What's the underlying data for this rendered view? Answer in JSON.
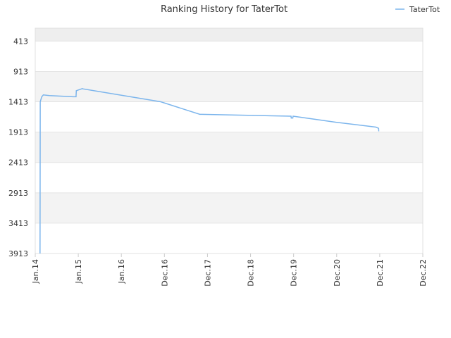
{
  "chart_data": {
    "type": "line",
    "title": "Ranking History for TaterTot",
    "xlabel": "",
    "ylabel": "",
    "y_reversed": true,
    "ylim": [
      3913,
      200
    ],
    "y_ticks": [
      413,
      913,
      1413,
      1913,
      2413,
      2913,
      3413,
      3913
    ],
    "x_range": [
      "2014-01",
      "2022-12"
    ],
    "x_ticks": [
      "Jan.14",
      "Jan.15",
      "Jan.16",
      "Dec.16",
      "Dec.17",
      "Dec.18",
      "Dec.19",
      "Dec.20",
      "Dec.21",
      "Dec.22"
    ],
    "grid": true,
    "legend_position": "top-right",
    "series": [
      {
        "name": "TaterTot",
        "color": "#7cb5ec",
        "points": [
          [
            "2014-02-10",
            3913
          ],
          [
            "2014-02-12",
            1413
          ],
          [
            "2014-02-25",
            1330
          ],
          [
            "2014-03-10",
            1300
          ],
          [
            "2014-05-01",
            1310
          ],
          [
            "2014-11-15",
            1330
          ],
          [
            "2014-12-10",
            1330
          ],
          [
            "2014-12-12",
            1230
          ],
          [
            "2015-02-01",
            1195
          ],
          [
            "2015-02-05",
            1200
          ],
          [
            "2016-11-20",
            1413
          ],
          [
            "2017-10-15",
            1620
          ],
          [
            "2017-11-01",
            1620
          ],
          [
            "2019-11-20",
            1650
          ],
          [
            "2019-11-22",
            1680
          ],
          [
            "2019-12-05",
            1680
          ],
          [
            "2019-12-07",
            1650
          ],
          [
            "2020-12-01",
            1750
          ],
          [
            "2021-11-01",
            1830
          ],
          [
            "2021-11-25",
            1850
          ],
          [
            "2021-11-26",
            1900
          ]
        ]
      }
    ]
  }
}
